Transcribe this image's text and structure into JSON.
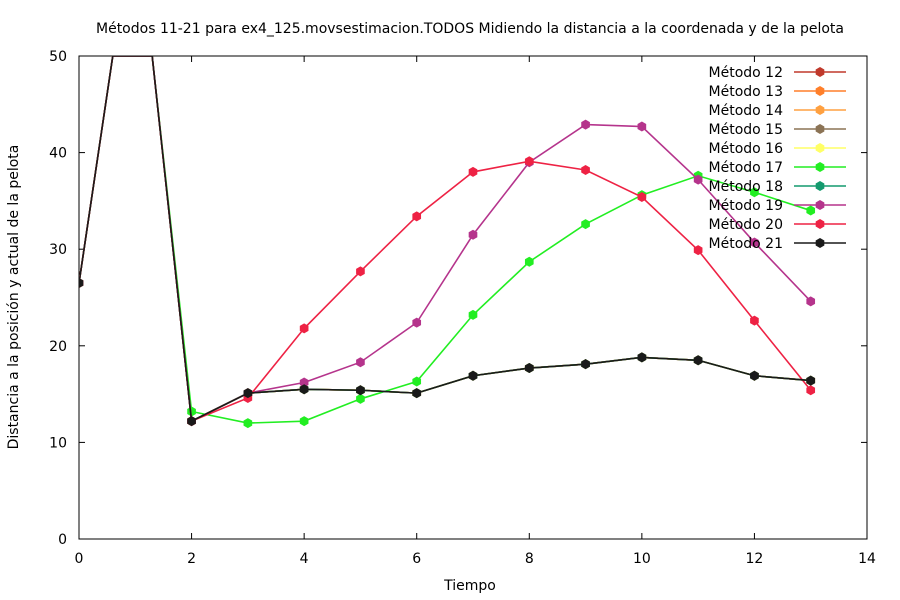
{
  "chart_data": {
    "type": "line",
    "title": "Métodos 11-21 para ex4_125.movsestimacion.TODOS Midiendo la distancia a la coordenada y de la pelota",
    "xlabel": "Tiempo",
    "ylabel": "Distancia a la posición y actual de la pelota",
    "xlim": [
      0,
      14
    ],
    "ylim": [
      0,
      50
    ],
    "xticks": [
      "0",
      "2",
      "4",
      "6",
      "8",
      "10",
      "12",
      "14"
    ],
    "yticks": [
      "0",
      "10",
      "20",
      "30",
      "40",
      "50"
    ],
    "grid": false,
    "legend_position": "top-right",
    "series": [
      {
        "name": "Método 12",
        "color": "#c0392b",
        "x": [
          0,
          0.6,
          1.3,
          2,
          3,
          4,
          5,
          6,
          7,
          8,
          9,
          10,
          11,
          12,
          13
        ],
        "y": [
          26.5,
          50,
          50,
          12.2,
          15.1,
          15.5,
          15.4,
          15.1,
          16.9,
          17.7,
          18.1,
          18.8,
          18.5,
          16.9,
          16.4
        ]
      },
      {
        "name": "Método 13",
        "color": "#ff7f2a",
        "x": [
          0,
          0.6,
          1.3,
          2,
          3,
          4,
          5,
          6,
          7,
          8,
          9,
          10,
          11,
          12,
          13
        ],
        "y": [
          26.5,
          50,
          50,
          12.2,
          15.1,
          15.5,
          15.4,
          15.1,
          16.9,
          17.7,
          18.1,
          18.8,
          18.5,
          16.9,
          16.4
        ]
      },
      {
        "name": "Método 14",
        "color": "#ffa040",
        "x": [
          0,
          0.6,
          1.3,
          2,
          3,
          4,
          5,
          6,
          7,
          8,
          9,
          10,
          11,
          12,
          13
        ],
        "y": [
          26.5,
          50,
          50,
          12.2,
          15.1,
          15.5,
          15.4,
          15.1,
          16.9,
          17.7,
          18.1,
          18.8,
          18.5,
          16.9,
          16.4
        ]
      },
      {
        "name": "Método 15",
        "color": "#8b7355",
        "x": [
          0,
          0.6,
          1.3,
          2,
          3,
          4,
          5,
          6,
          7,
          8,
          9,
          10,
          11,
          12,
          13
        ],
        "y": [
          26.5,
          50,
          50,
          12.2,
          15.1,
          15.5,
          15.4,
          15.1,
          16.9,
          17.7,
          18.1,
          18.8,
          18.5,
          16.9,
          16.4
        ]
      },
      {
        "name": "Método 16",
        "color": "#ffff66",
        "x": [
          0,
          0.6,
          1.3,
          2,
          3,
          4,
          5,
          6,
          7,
          8,
          9,
          10,
          11,
          12,
          13
        ],
        "y": [
          26.5,
          50,
          50,
          12.2,
          15.1,
          15.5,
          15.4,
          15.1,
          16.9,
          17.7,
          18.1,
          18.8,
          18.5,
          16.9,
          16.4
        ]
      },
      {
        "name": "Método 17",
        "color": "#22ee22",
        "x": [
          0,
          0.6,
          1.3,
          2,
          3,
          4,
          5,
          6,
          7,
          8,
          9,
          10,
          11,
          12,
          13
        ],
        "y": [
          26.5,
          50,
          50,
          13.2,
          12.0,
          12.2,
          14.5,
          16.3,
          23.2,
          28.7,
          32.6,
          35.6,
          37.6,
          35.9,
          34.0
        ]
      },
      {
        "name": "Método 18",
        "color": "#149a6e",
        "x": [
          0,
          0.6,
          1.3,
          2,
          3,
          4,
          5,
          6,
          7,
          8,
          9,
          10,
          11,
          12,
          13
        ],
        "y": [
          26.5,
          50,
          50,
          12.2,
          15.1,
          15.5,
          15.4,
          15.1,
          16.9,
          17.7,
          18.1,
          18.8,
          18.5,
          16.9,
          16.4
        ]
      },
      {
        "name": "Método 19",
        "color": "#b5348c",
        "x": [
          0,
          0.6,
          1.3,
          2,
          3,
          4,
          5,
          6,
          7,
          8,
          9,
          10,
          11,
          12,
          13
        ],
        "y": [
          26.5,
          50,
          50,
          12.2,
          15.1,
          16.2,
          18.3,
          22.4,
          31.5,
          39.0,
          42.9,
          42.7,
          37.2,
          30.7,
          24.6
        ]
      },
      {
        "name": "Método 20",
        "color": "#ee2244",
        "x": [
          0,
          0.6,
          1.3,
          2,
          3,
          4,
          5,
          6,
          7,
          8,
          9,
          10,
          11,
          12,
          13
        ],
        "y": [
          26.5,
          50,
          50,
          12.2,
          14.6,
          21.8,
          27.7,
          33.4,
          38.0,
          39.1,
          38.2,
          35.4,
          29.9,
          22.6,
          15.4
        ]
      },
      {
        "name": "Método 21",
        "color": "#1a1a1a",
        "x": [
          0,
          0.6,
          1.3,
          2,
          3,
          4,
          5,
          6,
          7,
          8,
          9,
          10,
          11,
          12,
          13
        ],
        "y": [
          26.5,
          50,
          50,
          12.2,
          15.1,
          15.5,
          15.4,
          15.1,
          16.9,
          17.7,
          18.1,
          18.8,
          18.5,
          16.9,
          16.4
        ]
      }
    ]
  }
}
